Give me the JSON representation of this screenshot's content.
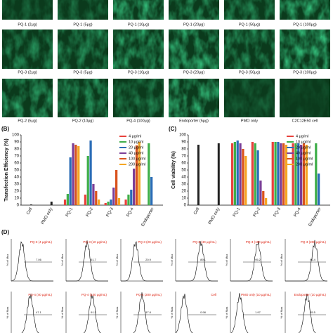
{
  "micrographs": {
    "rows": [
      [
        "PQ-1 (2μg)",
        "PQ-1 (5μg)",
        "PQ-1 (10μg)",
        "PQ-1 (20μg)",
        "PQ-1 (50μg)",
        "PQ-1 (100μg)"
      ],
      [
        "PQ-3 (2μg)",
        "PQ-3 (5μg)",
        "PQ-3 (10μg)",
        "PQ-3 (20μg)",
        "PQ-3 (50μg)",
        "PQ-3 (100μg)"
      ],
      [
        "PQ-2 (5μg)",
        "PQ-2 (10μg)",
        "PQ-4 (100μg)",
        "Endoporter (5μg)",
        "PMO only",
        "C2C12E50 cell"
      ]
    ]
  },
  "chart_data": [
    {
      "type": "bar",
      "panel_label": "(B)",
      "y_label": "Transfection Efficiency (%)",
      "categories": [
        "Cell",
        "PMO only",
        "PQ-1",
        "PQ-2",
        "PQ-3",
        "PQ-4",
        "Endoporter"
      ],
      "control_values": [
        1,
        5,
        null,
        null,
        null,
        null,
        null
      ],
      "control_color": "#222222",
      "series": [
        {
          "name": "4 μg/ml",
          "color": "#e8413c",
          "values": [
            null,
            null,
            8,
            15,
            3,
            8,
            null
          ]
        },
        {
          "name": "10 μg/ml",
          "color": "#3fae49",
          "values": [
            null,
            null,
            16,
            70,
            5,
            15,
            88
          ]
        },
        {
          "name": "20 μg/ml",
          "color": "#2a6cb6",
          "values": [
            null,
            null,
            68,
            92,
            8,
            22,
            40
          ]
        },
        {
          "name": "40 μg/ml",
          "color": "#7b3f98",
          "values": [
            null,
            null,
            88,
            30,
            25,
            52,
            null
          ]
        },
        {
          "name": "100 μg/ml",
          "color": "#d9531e",
          "values": [
            null,
            null,
            86,
            20,
            50,
            85,
            null
          ]
        },
        {
          "name": "200 μg/ml",
          "color": "#f5a623",
          "values": [
            null,
            null,
            84,
            8,
            10,
            90,
            null
          ]
        }
      ],
      "ylim": [
        0,
        100
      ],
      "yticks": [
        0,
        10,
        20,
        30,
        40,
        50,
        60,
        70,
        80,
        90,
        100
      ]
    },
    {
      "type": "bar",
      "panel_label": "(C)",
      "y_label": "Cell viability (%)",
      "categories": [
        "Cell",
        "PMO only",
        "PQ-1",
        "PQ-2",
        "PQ-3",
        "PQ-4",
        "Endoporter"
      ],
      "control_values": [
        86,
        88,
        null,
        null,
        null,
        null,
        null
      ],
      "control_color": "#222222",
      "series": [
        {
          "name": "4 μg/ml",
          "color": "#e8413c",
          "values": [
            null,
            null,
            88,
            90,
            90,
            88,
            null
          ]
        },
        {
          "name": "10 μg/ml",
          "color": "#3fae49",
          "values": [
            null,
            null,
            90,
            88,
            90,
            88,
            88
          ]
        },
        {
          "name": "20 μg/ml",
          "color": "#2a6cb6",
          "values": [
            null,
            null,
            92,
            78,
            90,
            88,
            45
          ]
        },
        {
          "name": "40 μg/ml",
          "color": "#7b3f98",
          "values": [
            null,
            null,
            88,
            35,
            88,
            86,
            null
          ]
        },
        {
          "name": "100 μg/ml",
          "color": "#d9531e",
          "values": [
            null,
            null,
            80,
            20,
            88,
            88,
            null
          ]
        },
        {
          "name": "200 μg/ml",
          "color": "#f5a623",
          "values": [
            null,
            null,
            70,
            10,
            86,
            86,
            null
          ]
        }
      ],
      "ylim": [
        0,
        100
      ],
      "yticks": [
        0,
        10,
        20,
        30,
        40,
        50,
        60,
        70,
        80,
        90,
        100
      ]
    }
  ],
  "flow": {
    "panel_label": "(D)",
    "y_axis_label": "% of Max",
    "plots": [
      {
        "label": "PQ-3 (4 μg/mL)",
        "gate": "7.06"
      },
      {
        "label": "PQ-3 (10 μg/mL)",
        "gate": "61.7"
      },
      {
        "label": "PQ-3 (20 μg/mL)",
        "gate": "20.9"
      },
      {
        "label": "PQ-3 (40 μg/mL)",
        "gate": "89.1"
      },
      {
        "label": "PQ-3 (100 μg/mL)",
        "gate": "95.2"
      },
      {
        "label": "PQ-3 (200 μg/mL)",
        "gate": "96.4"
      },
      {
        "label": "PQ-4 (40 μg/mL)",
        "gate": "47.1"
      },
      {
        "label": "PQ-4 (100 μg/mL)",
        "gate": "91.2"
      },
      {
        "label": "PQ-4 (200 μg/mL)",
        "gate": "57.8"
      },
      {
        "label": "Cell",
        "gate": "0.98"
      },
      {
        "label": "PMO only (10 μg/mL)",
        "gate": "1.97"
      },
      {
        "label": "Endoporter (10 μg/mL)",
        "gate": "65.5"
      }
    ]
  }
}
